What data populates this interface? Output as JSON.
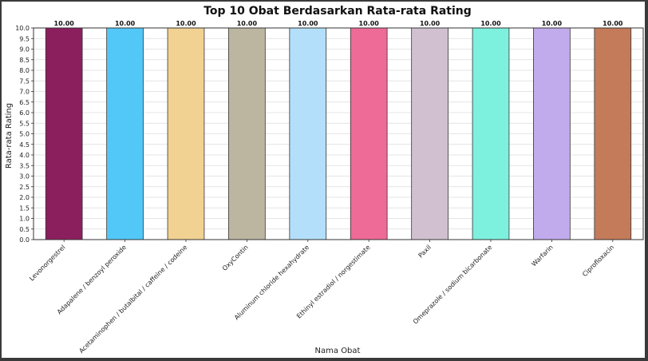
{
  "chart_data": {
    "type": "bar",
    "title": "Top 10 Obat Berdasarkan Rata-rata Rating",
    "xlabel": "Nama Obat",
    "ylabel": "Rata-rata Rating",
    "ylim": [
      0,
      10
    ],
    "yticks": [
      0.0,
      0.5,
      1.0,
      1.5,
      2.0,
      2.5,
      3.0,
      3.5,
      4.0,
      4.5,
      5.0,
      5.5,
      6.0,
      6.5,
      7.0,
      7.5,
      8.0,
      8.5,
      9.0,
      9.5,
      10.0
    ],
    "grid": true,
    "categories": [
      "Levonorgestrel",
      "Adapalene / benzoyl peroxide",
      "Acetaminophen / butalbital / caffeine / codeine",
      "OxyContin",
      "Aluminum chloride hexahydrate",
      "Ethinyl estradiol / norgestimate",
      "Paxil",
      "Omeprazole / sodium bicarbonate",
      "Warfarin",
      "Ciprofloxacin"
    ],
    "values": [
      10.0,
      10.0,
      10.0,
      10.0,
      10.0,
      10.0,
      10.0,
      10.0,
      10.0,
      10.0
    ],
    "value_labels": [
      "10.00",
      "10.00",
      "10.00",
      "10.00",
      "10.00",
      "10.00",
      "10.00",
      "10.00",
      "10.00",
      "10.00"
    ],
    "colors": [
      "#8b1f5e",
      "#52c8f8",
      "#f2d292",
      "#bcb5a0",
      "#b3dffa",
      "#ee6a97",
      "#d1c1d0",
      "#7ef0de",
      "#c1abec",
      "#c47b5a"
    ]
  }
}
